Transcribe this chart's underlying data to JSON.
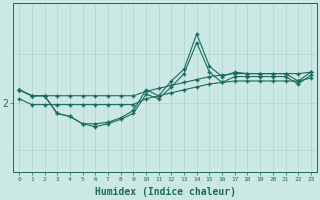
{
  "bg_color": "#cce8e4",
  "line_color": "#1a6b5e",
  "grid_color": "#b0d4ce",
  "xlabel": "Humidex (Indice chaleur)",
  "xlabel_fontsize": 7,
  "figsize": [
    3.2,
    2.0
  ],
  "dpi": 100,
  "xlim": [
    -0.5,
    23.5
  ],
  "ylim": [
    0.0,
    1.15
  ],
  "ytick_val": 0.47,
  "ytick_label": "2",
  "hline_y": 0.47,
  "x": [
    0,
    1,
    2,
    3,
    4,
    5,
    6,
    7,
    8,
    9,
    10,
    11,
    12,
    13,
    14,
    15,
    16,
    17,
    18,
    19,
    20,
    21,
    22,
    23
  ],
  "line_straight1": [
    0.56,
    0.52,
    0.52,
    0.52,
    0.52,
    0.52,
    0.52,
    0.52,
    0.52,
    0.52,
    0.55,
    0.57,
    0.59,
    0.61,
    0.63,
    0.65,
    0.66,
    0.67,
    0.67,
    0.67,
    0.67,
    0.67,
    0.67,
    0.68
  ],
  "line_straight2": [
    0.5,
    0.46,
    0.46,
    0.46,
    0.46,
    0.46,
    0.46,
    0.46,
    0.46,
    0.46,
    0.5,
    0.52,
    0.54,
    0.56,
    0.58,
    0.6,
    0.61,
    0.62,
    0.62,
    0.62,
    0.62,
    0.62,
    0.62,
    0.64
  ],
  "line_jagged1": [
    0.56,
    0.52,
    0.52,
    0.4,
    0.38,
    0.33,
    0.33,
    0.34,
    0.37,
    0.42,
    0.56,
    0.52,
    0.62,
    0.7,
    0.94,
    0.72,
    0.65,
    0.68,
    0.67,
    0.67,
    0.67,
    0.67,
    0.62,
    0.68
  ],
  "line_jagged2": [
    0.56,
    0.52,
    0.52,
    0.4,
    0.38,
    0.33,
    0.31,
    0.33,
    0.36,
    0.4,
    0.53,
    0.5,
    0.58,
    0.67,
    0.88,
    0.68,
    0.61,
    0.65,
    0.65,
    0.65,
    0.65,
    0.65,
    0.6,
    0.66
  ],
  "marker_style": "+",
  "marker_size": 3,
  "line_width": 0.8
}
